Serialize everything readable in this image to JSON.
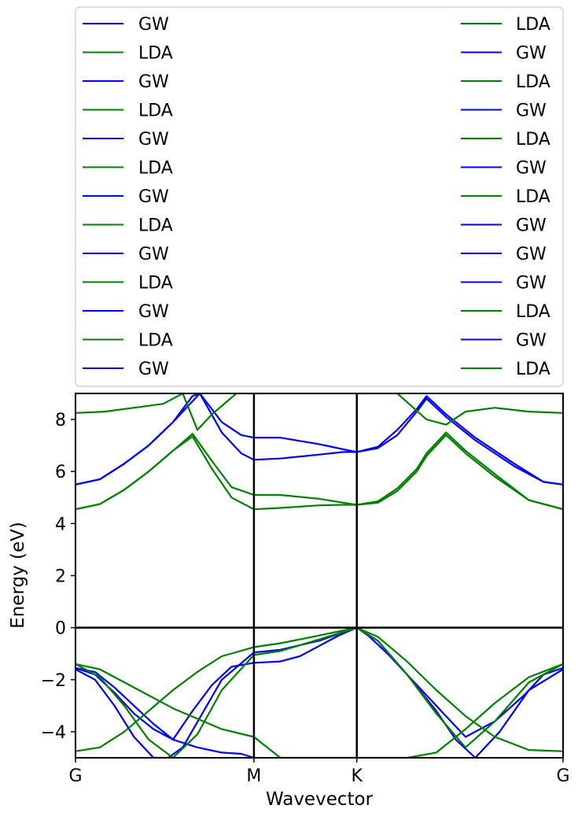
{
  "chart_data": {
    "type": "line",
    "title": "",
    "xlabel": "Wavevector",
    "ylabel": "Energy (eV)",
    "xlim": [
      0,
      1
    ],
    "ylim": [
      -5,
      9
    ],
    "grid": false,
    "legend_location": "above plot, two columns",
    "x_ticks": [
      {
        "x": 0,
        "label": "G"
      },
      {
        "x": 0.366,
        "label": "M"
      },
      {
        "x": 0.577,
        "label": "K"
      },
      {
        "x": 1.0,
        "label": "G"
      }
    ],
    "y_ticks": [
      -4,
      -2,
      0,
      2,
      4,
      6,
      8
    ],
    "reference_lines": {
      "vertical_x": [
        0.366,
        0.577
      ],
      "horizontal_y": [
        0
      ]
    },
    "colors": {
      "GW": "#0000ff",
      "LDA": "#008000",
      "axes": "#000000"
    },
    "legend": {
      "columns": [
        [
          "GW",
          "LDA",
          "GW",
          "LDA",
          "GW",
          "LDA",
          "GW",
          "LDA",
          "GW",
          "LDA",
          "GW",
          "LDA",
          "GW"
        ],
        [
          "LDA",
          "GW",
          "LDA",
          "GW",
          "LDA",
          "GW",
          "LDA",
          "GW",
          "GW",
          "GW",
          "LDA",
          "GW",
          "LDA"
        ]
      ]
    },
    "series": [
      {
        "name": "GW",
        "x": [
          0,
          0.05,
          0.1,
          0.15,
          0.2,
          0.24,
          0.255,
          0.3,
          0.34,
          0.366,
          0.42,
          0.5,
          0.55,
          0.577,
          0.62,
          0.66,
          0.7,
          0.72,
          0.76,
          0.82,
          0.9,
          0.96,
          1.0
        ],
        "y": [
          5.5,
          5.7,
          6.3,
          7.0,
          7.9,
          8.9,
          9.0,
          7.9,
          7.4,
          7.3,
          7.3,
          7.05,
          6.85,
          6.75,
          6.95,
          7.6,
          8.4,
          8.9,
          8.2,
          7.3,
          6.3,
          5.6,
          5.5
        ]
      },
      {
        "name": "GW",
        "x": [
          0,
          0.05,
          0.1,
          0.15,
          0.2,
          0.24,
          0.255,
          0.3,
          0.34,
          0.366,
          0.42,
          0.5,
          0.55,
          0.577,
          0.62,
          0.66,
          0.7,
          0.72,
          0.76,
          0.82,
          0.9,
          0.96,
          1.0
        ],
        "y": [
          5.5,
          5.7,
          6.3,
          7.0,
          7.9,
          8.7,
          9.0,
          7.5,
          6.7,
          6.45,
          6.5,
          6.65,
          6.75,
          6.75,
          6.9,
          7.4,
          8.3,
          8.8,
          8.1,
          7.2,
          6.2,
          5.6,
          5.5
        ]
      },
      {
        "name": "LDA",
        "x": [
          0,
          0.06,
          0.12,
          0.18,
          0.22,
          0.25,
          0.28,
          0.33,
          0.366,
          0.42,
          0.5,
          0.55,
          0.577,
          0.62,
          0.66,
          0.72,
          0.76,
          0.8,
          0.86,
          0.93,
          1.0
        ],
        "y": [
          8.25,
          8.3,
          8.45,
          8.6,
          9.0,
          7.6,
          8.2,
          9.0,
          9.0,
          9.0,
          9.0,
          9.0,
          9.0,
          9.0,
          9.0,
          8.0,
          7.8,
          8.3,
          8.45,
          8.3,
          8.25
        ]
      },
      {
        "name": "LDA",
        "x": [
          0,
          0.05,
          0.1,
          0.15,
          0.2,
          0.24,
          0.28,
          0.32,
          0.366,
          0.42,
          0.5,
          0.55,
          0.577,
          0.62,
          0.66,
          0.7,
          0.72,
          0.76,
          0.8,
          0.86,
          0.93,
          1.0
        ],
        "y": [
          4.55,
          4.75,
          5.3,
          6.0,
          6.8,
          7.45,
          6.4,
          5.4,
          5.1,
          5.1,
          4.95,
          4.8,
          4.72,
          4.85,
          5.35,
          6.1,
          6.7,
          7.5,
          6.8,
          5.9,
          4.9,
          4.55
        ]
      },
      {
        "name": "LDA",
        "x": [
          0,
          0.05,
          0.1,
          0.15,
          0.2,
          0.24,
          0.28,
          0.32,
          0.366,
          0.42,
          0.5,
          0.55,
          0.577,
          0.62,
          0.66,
          0.7,
          0.72,
          0.76,
          0.8,
          0.86,
          0.93,
          1.0
        ],
        "y": [
          4.55,
          4.75,
          5.3,
          6.0,
          6.8,
          7.35,
          6.1,
          5.0,
          4.55,
          4.6,
          4.7,
          4.72,
          4.72,
          4.8,
          5.25,
          6.0,
          6.6,
          7.4,
          6.7,
          5.8,
          4.9,
          4.55
        ]
      },
      {
        "name": "GW",
        "x": [
          0,
          0.04,
          0.08,
          0.12,
          0.16,
          0.2,
          0.24,
          0.28,
          0.32,
          0.366,
          0.42,
          0.46,
          0.5,
          0.54,
          0.577,
          0.6,
          0.64,
          0.68,
          0.72,
          0.76,
          0.8,
          0.86,
          0.92,
          0.96,
          1.0
        ],
        "y": [
          -1.55,
          -1.7,
          -2.3,
          -3.0,
          -3.7,
          -4.3,
          -3.2,
          -2.2,
          -1.5,
          -1.35,
          -1.3,
          -1.1,
          -0.7,
          -0.3,
          0.0,
          -0.3,
          -1.0,
          -1.8,
          -2.6,
          -3.4,
          -4.2,
          -3.6,
          -2.6,
          -1.8,
          -1.55
        ]
      },
      {
        "name": "GW",
        "x": [
          0,
          0.04,
          0.08,
          0.12,
          0.16,
          0.19,
          0.22,
          0.26,
          0.3,
          0.366,
          0.42,
          0.5,
          0.577,
          0.62,
          0.68,
          0.74,
          0.78,
          0.82,
          0.87,
          0.93,
          1.0
        ],
        "y": [
          -1.6,
          -2.0,
          -3.0,
          -4.2,
          -5.0,
          -5.0,
          -4.6,
          -3.3,
          -2.0,
          -0.95,
          -0.85,
          -0.5,
          0.0,
          -0.5,
          -1.8,
          -3.2,
          -4.3,
          -5.0,
          -4.0,
          -2.4,
          -1.6
        ]
      },
      {
        "name": "GW",
        "x": [
          0,
          0.04,
          0.08,
          0.12,
          0.16,
          0.2,
          0.25,
          0.3,
          0.34,
          0.366
        ],
        "y": [
          -1.55,
          -1.8,
          -2.5,
          -3.3,
          -3.9,
          -4.3,
          -4.6,
          -4.8,
          -4.85,
          -5.0
        ]
      },
      {
        "name": "LDA",
        "x": [
          0,
          0.05,
          0.1,
          0.15,
          0.2,
          0.25,
          0.3,
          0.366,
          0.42,
          0.5,
          0.577,
          0.63,
          0.68,
          0.74,
          0.8,
          0.86,
          0.93,
          1.0
        ],
        "y": [
          -1.4,
          -1.6,
          -2.1,
          -2.6,
          -3.1,
          -3.5,
          -3.9,
          -4.2,
          -5.0,
          -5.0,
          -5.0,
          -5.0,
          -5.0,
          -4.8,
          -3.9,
          -2.9,
          -1.9,
          -1.4
        ]
      },
      {
        "name": "LDA",
        "x": [
          0,
          0.05,
          0.1,
          0.15,
          0.2,
          0.25,
          0.3,
          0.366,
          0.42,
          0.5,
          0.577,
          0.62,
          0.68,
          0.74,
          0.8,
          0.86,
          0.93,
          1.0
        ],
        "y": [
          -4.75,
          -4.6,
          -4.0,
          -3.2,
          -2.4,
          -1.7,
          -1.1,
          -0.75,
          -0.6,
          -0.3,
          0.0,
          -0.35,
          -1.3,
          -2.4,
          -3.4,
          -4.2,
          -4.7,
          -4.75
        ]
      },
      {
        "name": "LDA",
        "x": [
          0,
          0.05,
          0.1,
          0.15,
          0.2,
          0.25,
          0.3,
          0.366,
          0.42,
          0.5,
          0.577,
          0.62,
          0.68,
          0.74,
          0.8,
          0.86,
          0.93,
          1.0
        ],
        "y": [
          -1.4,
          -1.9,
          -3.0,
          -4.3,
          -5.0,
          -4.1,
          -2.4,
          -1.05,
          -0.9,
          -0.45,
          0.0,
          -0.5,
          -1.8,
          -3.3,
          -4.6,
          -3.6,
          -2.1,
          -1.4
        ]
      }
    ]
  }
}
